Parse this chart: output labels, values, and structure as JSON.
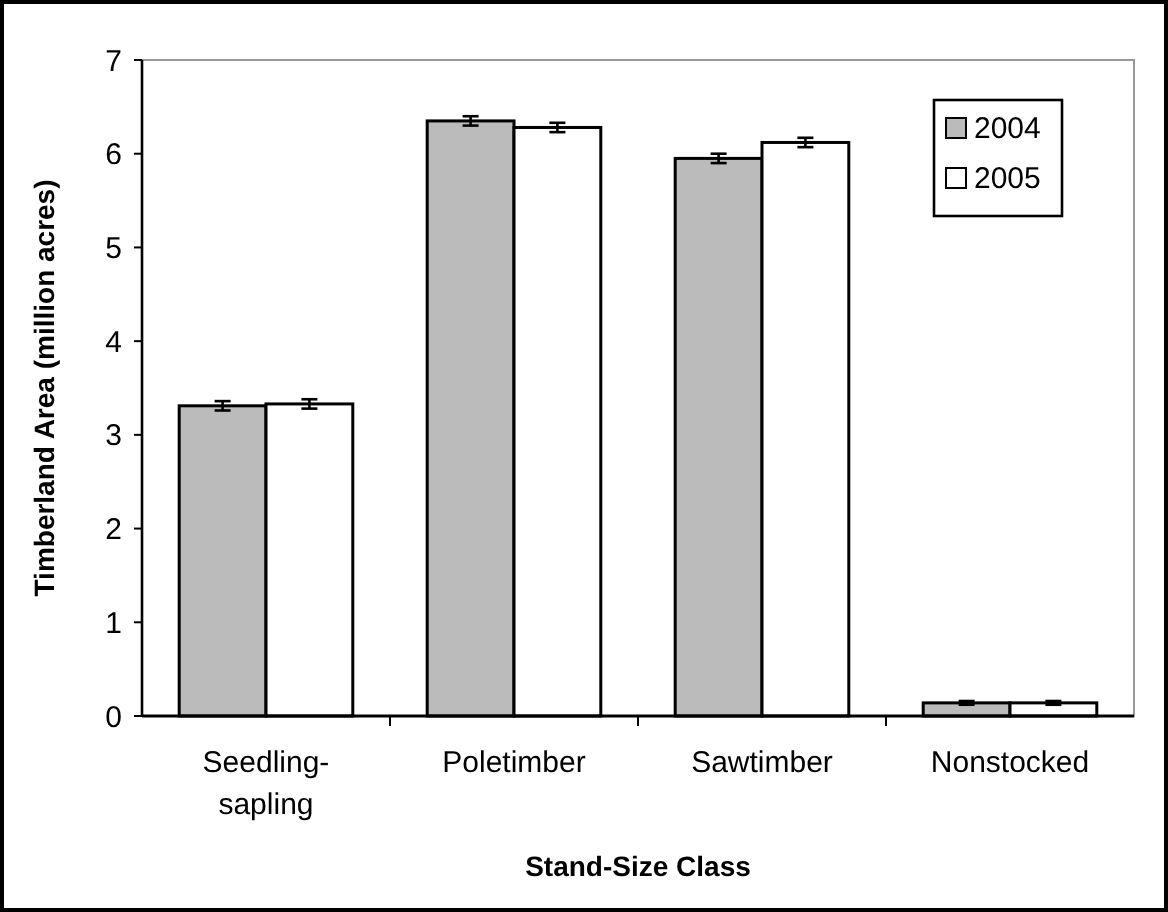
{
  "chart_data": {
    "type": "bar",
    "xlabel": "Stand-Size Class",
    "ylabel": "Timberland Area (million acres)",
    "categories": [
      "Seedling-sapling",
      "Poletimber",
      "Sawtimber",
      "Nonstocked"
    ],
    "series": [
      {
        "name": "2004",
        "color": "#bbbbbb",
        "values": [
          3.31,
          6.35,
          5.95,
          0.14
        ],
        "errors": [
          0.05,
          0.05,
          0.05,
          0.02
        ]
      },
      {
        "name": "2005",
        "color": "#ffffff",
        "values": [
          3.33,
          6.28,
          6.12,
          0.14
        ],
        "errors": [
          0.05,
          0.05,
          0.05,
          0.02
        ]
      }
    ],
    "ylim": [
      0,
      7
    ],
    "yticks": [
      0,
      1,
      2,
      3,
      4,
      5,
      6,
      7
    ],
    "grid": false,
    "legend": "top right"
  }
}
